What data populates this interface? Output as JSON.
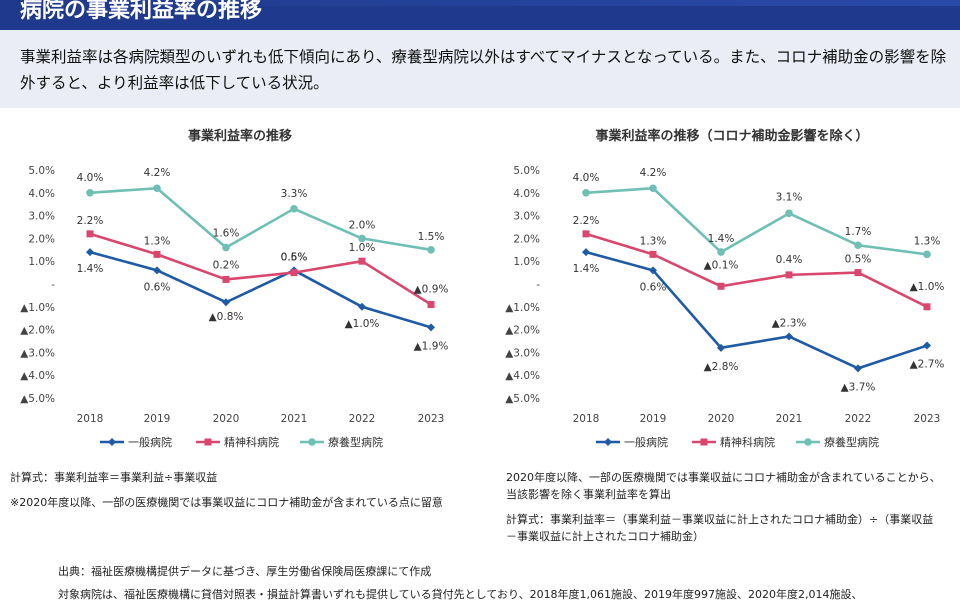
{
  "header": {
    "title": "病院の事業利益率の推移"
  },
  "summary": {
    "text": "事業利益率は各病院類型のいずれも低下傾向にあり、療養型病院以外はすべてマイナスとなっている。また、コロナ補助金の影響を除外すると、より利益率は低下している状況。"
  },
  "colors": {
    "general": "#1f5aa6",
    "psychiatric": "#d9476e",
    "longterm": "#6fbfb5"
  },
  "chart_data": [
    {
      "type": "line",
      "title": "事業利益率の推移",
      "x": [
        "2018",
        "2019",
        "2020",
        "2021",
        "2022",
        "2023"
      ],
      "ylim": [
        -5.0,
        5.0
      ],
      "yticks": [
        "5.0%",
        "4.0%",
        "3.0%",
        "2.0%",
        "1.0%",
        "-",
        "▲1.0%",
        "▲2.0%",
        "▲3.0%",
        "▲4.0%",
        "▲5.0%"
      ],
      "series": [
        {
          "name": "一般病院",
          "values": [
            1.4,
            0.6,
            -0.8,
            0.6,
            -1.0,
            -1.9
          ],
          "labels": [
            "1.4%",
            "0.6%",
            "▲0.8%",
            "0.6%",
            "▲1.0%",
            "▲1.9%"
          ]
        },
        {
          "name": "精神科病院",
          "values": [
            2.2,
            1.3,
            0.2,
            0.5,
            1.0,
            -0.9
          ],
          "labels": [
            "2.2%",
            "1.3%",
            "0.2%",
            "0.5%",
            "1.0%",
            "▲0.9%"
          ]
        },
        {
          "name": "療養型病院",
          "values": [
            4.0,
            4.2,
            1.6,
            3.3,
            2.0,
            1.5
          ],
          "labels": [
            "4.0%",
            "4.2%",
            "1.6%",
            "3.3%",
            "2.0%",
            "1.5%"
          ]
        }
      ],
      "legend": "bottom",
      "grid": false
    },
    {
      "type": "line",
      "title": "事業利益率の推移（コロナ補助金影響を除く）",
      "x": [
        "2018",
        "2019",
        "2020",
        "2021",
        "2022",
        "2023"
      ],
      "ylim": [
        -5.0,
        5.0
      ],
      "yticks": [
        "5.0%",
        "4.0%",
        "3.0%",
        "2.0%",
        "1.0%",
        "-",
        "▲1.0%",
        "▲2.0%",
        "▲3.0%",
        "▲4.0%",
        "▲5.0%"
      ],
      "series": [
        {
          "name": "一般病院",
          "values": [
            1.4,
            0.6,
            -2.8,
            -2.3,
            -3.7,
            -2.7
          ],
          "labels": [
            "1.4%",
            "0.6%",
            "▲2.8%",
            "▲2.3%",
            "▲3.7%",
            "▲2.7%"
          ]
        },
        {
          "name": "精神科病院",
          "values": [
            2.2,
            1.3,
            -0.1,
            0.4,
            0.5,
            -1.0
          ],
          "labels": [
            "2.2%",
            "1.3%",
            "▲0.1%",
            "0.4%",
            "0.5%",
            "▲1.0%"
          ]
        },
        {
          "name": "療養型病院",
          "values": [
            4.0,
            4.2,
            1.4,
            3.1,
            1.7,
            1.3
          ],
          "labels": [
            "4.0%",
            "4.2%",
            "1.4%",
            "3.1%",
            "1.7%",
            "1.3%"
          ]
        }
      ],
      "legend": "bottom",
      "grid": false
    }
  ],
  "notes": {
    "left_formula": "計算式：事業利益率＝事業利益÷事業収益",
    "left_note": "※2020年度以降、一部の医療機関では事業収益にコロナ補助金が含まれている点に留意",
    "right_note1": "2020年度以降、一部の医療機関では事業収益にコロナ補助金が含まれていることから、",
    "right_note2": "当該影響を除く事業利益率を算出",
    "right_formula1": "計算式：事業利益率＝（事業利益－事業収益に計上されたコロナ補助金）÷（事業収益",
    "right_formula2": "－事業収益に計上されたコロナ補助金）",
    "source": "出典：福祉医療機構提供データに基づき、厚生労働省保険局医療課にて作成",
    "target": "対象病院は、福祉医療機構に貸借対照表・損益計算書いずれも提供している貸付先としており、2018年度1,061施設、2019年度997施設、2020年度2,014施設、"
  }
}
